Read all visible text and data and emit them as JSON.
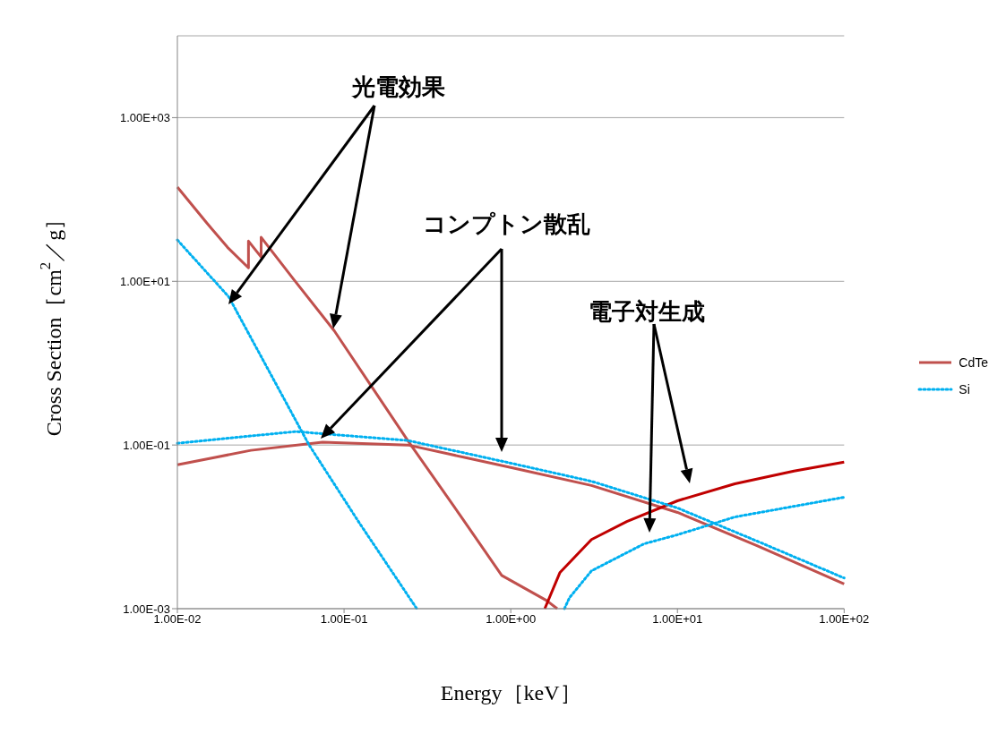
{
  "chart_data": {
    "type": "line",
    "xlabel": "Energy［keV］",
    "ylabel": "Cross Section［cm$^{2}$／g］",
    "log": "xy",
    "xlim": [
      0.01,
      100
    ],
    "xticks": [
      {
        "value": 0.01,
        "label": "1.00E-02"
      },
      {
        "value": 0.1,
        "label": "1.00E-01"
      },
      {
        "value": 1,
        "label": "1.00E+00"
      },
      {
        "value": 10,
        "label": "1.00E+01"
      },
      {
        "value": 100,
        "label": "1.00E+02"
      }
    ],
    "ylim": [
      0.001,
      10000
    ],
    "yticks": [
      {
        "value": 0.001,
        "label": "1.00E-03"
      },
      {
        "value": 0.1,
        "label": "1.00E-01"
      },
      {
        "value": 10,
        "label": "1.00E+01"
      },
      {
        "value": 1000,
        "label": "1.00E+03"
      }
    ],
    "grid": "y",
    "legend": "right",
    "marker": "none",
    "annotations": [
      "光電効果",
      "コンプトン散乱",
      "電子対生成"
    ],
    "series": [
      {
        "name": "CdTe",
        "color": "#c0504d",
        "line_style": "solid",
        "x": [
          0.01,
          0.015,
          0.02,
          0.0267,
          0.0267,
          0.0318,
          0.0318,
          0.05,
          0.0873,
          0.15,
          0.241,
          0.5,
          0.883,
          1.64,
          1.9
        ],
        "values": [
          142,
          51.7,
          26,
          14.6,
          31,
          19.8,
          34.5,
          10.5,
          2.49,
          0.48,
          0.1135,
          0.0136,
          0.00255,
          0.00126,
          0.001
        ]
      },
      {
        "color": "#c0504d",
        "line_style": "solid",
        "x": [
          0.01,
          0.0276,
          0.0743,
          0.241,
          1,
          3.05,
          10,
          30,
          100
        ],
        "values": [
          0.0573,
          0.086,
          0.108,
          0.1,
          0.0531,
          0.032,
          0.015,
          0.0059,
          0.002
        ]
      },
      {
        "color": "#c00000",
        "line_style": "solid",
        "x": [
          1.6,
          1.97,
          3.05,
          4.97,
          10,
          22.1,
          50,
          100
        ],
        "values": [
          0.001,
          0.00275,
          0.007,
          0.0116,
          0.0208,
          0.0336,
          0.048,
          0.0618
        ]
      },
      {
        "name": "Si",
        "color": "#00b0f0",
        "line_style": "dotted",
        "x": [
          0.01,
          0.0203,
          0.0617,
          0.122,
          0.273
        ],
        "values": [
          32,
          6.5,
          0.1,
          0.0116,
          0.001
        ]
      },
      {
        "color": "#00b0f0",
        "line_style": "dotted",
        "x": [
          0.01,
          0.0512,
          0.241,
          1,
          3.05,
          10,
          30,
          100
        ],
        "values": [
          0.105,
          0.146,
          0.1135,
          0.06,
          0.036,
          0.017,
          0.0067,
          0.00237
        ]
      },
      {
        "color": "#00b0f0",
        "line_style": "dotted",
        "x": [
          2.1,
          2.25,
          3.05,
          6.3,
          10,
          22.1,
          100
        ],
        "values": [
          0.001,
          0.00136,
          0.0029,
          0.0062,
          0.008,
          0.0132,
          0.023
        ]
      }
    ]
  }
}
